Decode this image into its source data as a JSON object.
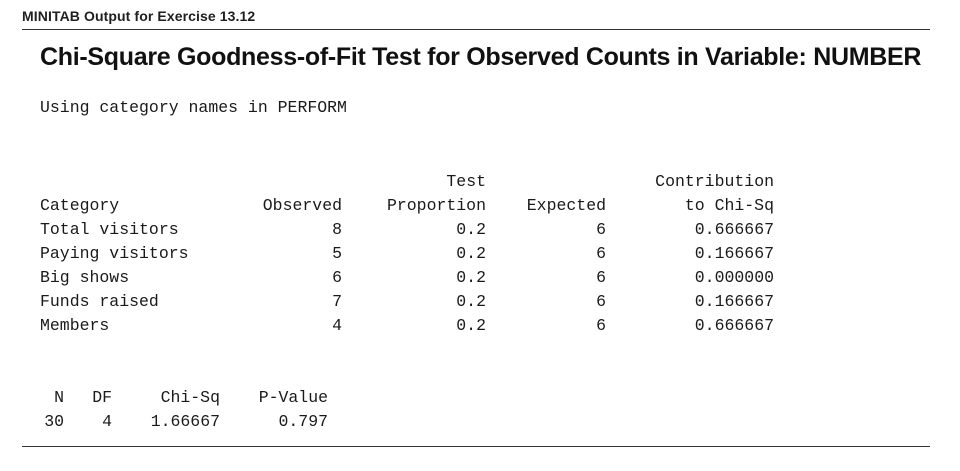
{
  "caption": "MINITAB Output for Exercise 13.12",
  "title": "Chi-Square Goodness-of-Fit Test for Observed Counts in Variable: NUMBER",
  "subtitle": "Using category names in PERFORM",
  "table": {
    "header_top": {
      "category": "",
      "observed": "",
      "proportion": "Test",
      "expected": "",
      "contribution": "Contribution"
    },
    "header_bottom": {
      "category": "Category",
      "observed": "Observed",
      "proportion": "Proportion",
      "expected": "Expected",
      "contribution": "to Chi-Sq"
    },
    "rows": [
      {
        "category": "Total visitors",
        "observed": "8",
        "proportion": "0.2",
        "expected": "6",
        "contribution": "0.666667"
      },
      {
        "category": "Paying visitors",
        "observed": "5",
        "proportion": "0.2",
        "expected": "6",
        "contribution": "0.166667"
      },
      {
        "category": "Big shows",
        "observed": "6",
        "proportion": "0.2",
        "expected": "6",
        "contribution": "0.000000"
      },
      {
        "category": "Funds raised",
        "observed": "7",
        "proportion": "0.2",
        "expected": "6",
        "contribution": "0.166667"
      },
      {
        "category": "Members",
        "observed": "4",
        "proportion": "0.2",
        "expected": "6",
        "contribution": "0.666667"
      }
    ]
  },
  "summary": {
    "headers": {
      "n": "N",
      "df": "DF",
      "chisq": "Chi-Sq",
      "pvalue": "P-Value"
    },
    "values": {
      "n": "30",
      "df": "4",
      "chisq": "1.66667",
      "pvalue": "0.797"
    }
  }
}
